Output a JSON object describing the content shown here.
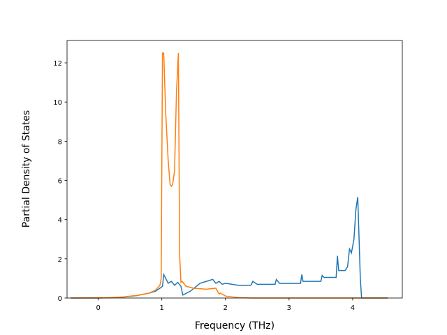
{
  "chart_data": {
    "type": "line",
    "xlabel": "Frequency (THz)",
    "ylabel": "Partial Density of States",
    "xlim": [
      -0.49,
      4.78
    ],
    "ylim": [
      0,
      13.14
    ],
    "xticks": [
      0,
      1,
      2,
      3,
      4
    ],
    "yticks": [
      0,
      2,
      4,
      6,
      8,
      10,
      12
    ],
    "series": [
      {
        "color": "#1f77b4",
        "x": [
          -0.43,
          0,
          0.2,
          0.4,
          0.6,
          0.8,
          0.9,
          0.97,
          1.01,
          1.03,
          1.1,
          1.15,
          1.2,
          1.25,
          1.3,
          1.33,
          1.45,
          1.6,
          1.7,
          1.8,
          1.85,
          1.9,
          1.95,
          2.0,
          2.2,
          2.4,
          2.43,
          2.5,
          2.78,
          2.8,
          2.85,
          3.18,
          3.2,
          3.22,
          3.5,
          3.52,
          3.55,
          3.74,
          3.76,
          3.78,
          3.88,
          3.92,
          3.95,
          3.98,
          4.02,
          4.05,
          4.08,
          4.12,
          4.14,
          4.55
        ],
        "values": [
          0,
          0,
          0.02,
          0.05,
          0.12,
          0.25,
          0.35,
          0.5,
          0.6,
          1.2,
          0.75,
          0.85,
          0.65,
          0.8,
          0.6,
          0.15,
          0.35,
          0.75,
          0.85,
          0.95,
          0.75,
          0.85,
          0.7,
          0.75,
          0.65,
          0.65,
          0.85,
          0.7,
          0.7,
          0.95,
          0.75,
          0.75,
          1.2,
          0.85,
          0.85,
          1.15,
          1.05,
          1.05,
          2.15,
          1.4,
          1.4,
          1.6,
          2.5,
          2.3,
          3.0,
          4.5,
          5.15,
          1.0,
          0,
          0
        ]
      },
      {
        "color": "#ff7f0e",
        "x": [
          -0.43,
          0,
          0.2,
          0.4,
          0.6,
          0.8,
          0.9,
          0.97,
          0.99,
          1.01,
          1.03,
          1.06,
          1.1,
          1.13,
          1.15,
          1.17,
          1.2,
          1.23,
          1.26,
          1.28,
          1.3,
          1.32,
          1.38,
          1.5,
          1.7,
          1.85,
          1.9,
          1.92,
          2.0,
          2.2,
          2.4,
          4.55
        ],
        "values": [
          0,
          0.01,
          0.02,
          0.06,
          0.13,
          0.25,
          0.4,
          0.65,
          1.0,
          12.5,
          12.5,
          9.5,
          7,
          5.8,
          5.7,
          5.8,
          6.5,
          10.5,
          12.5,
          2.2,
          0.8,
          0.85,
          0.6,
          0.5,
          0.45,
          0.5,
          0.2,
          0.25,
          0.1,
          0.02,
          0,
          0
        ]
      }
    ]
  }
}
